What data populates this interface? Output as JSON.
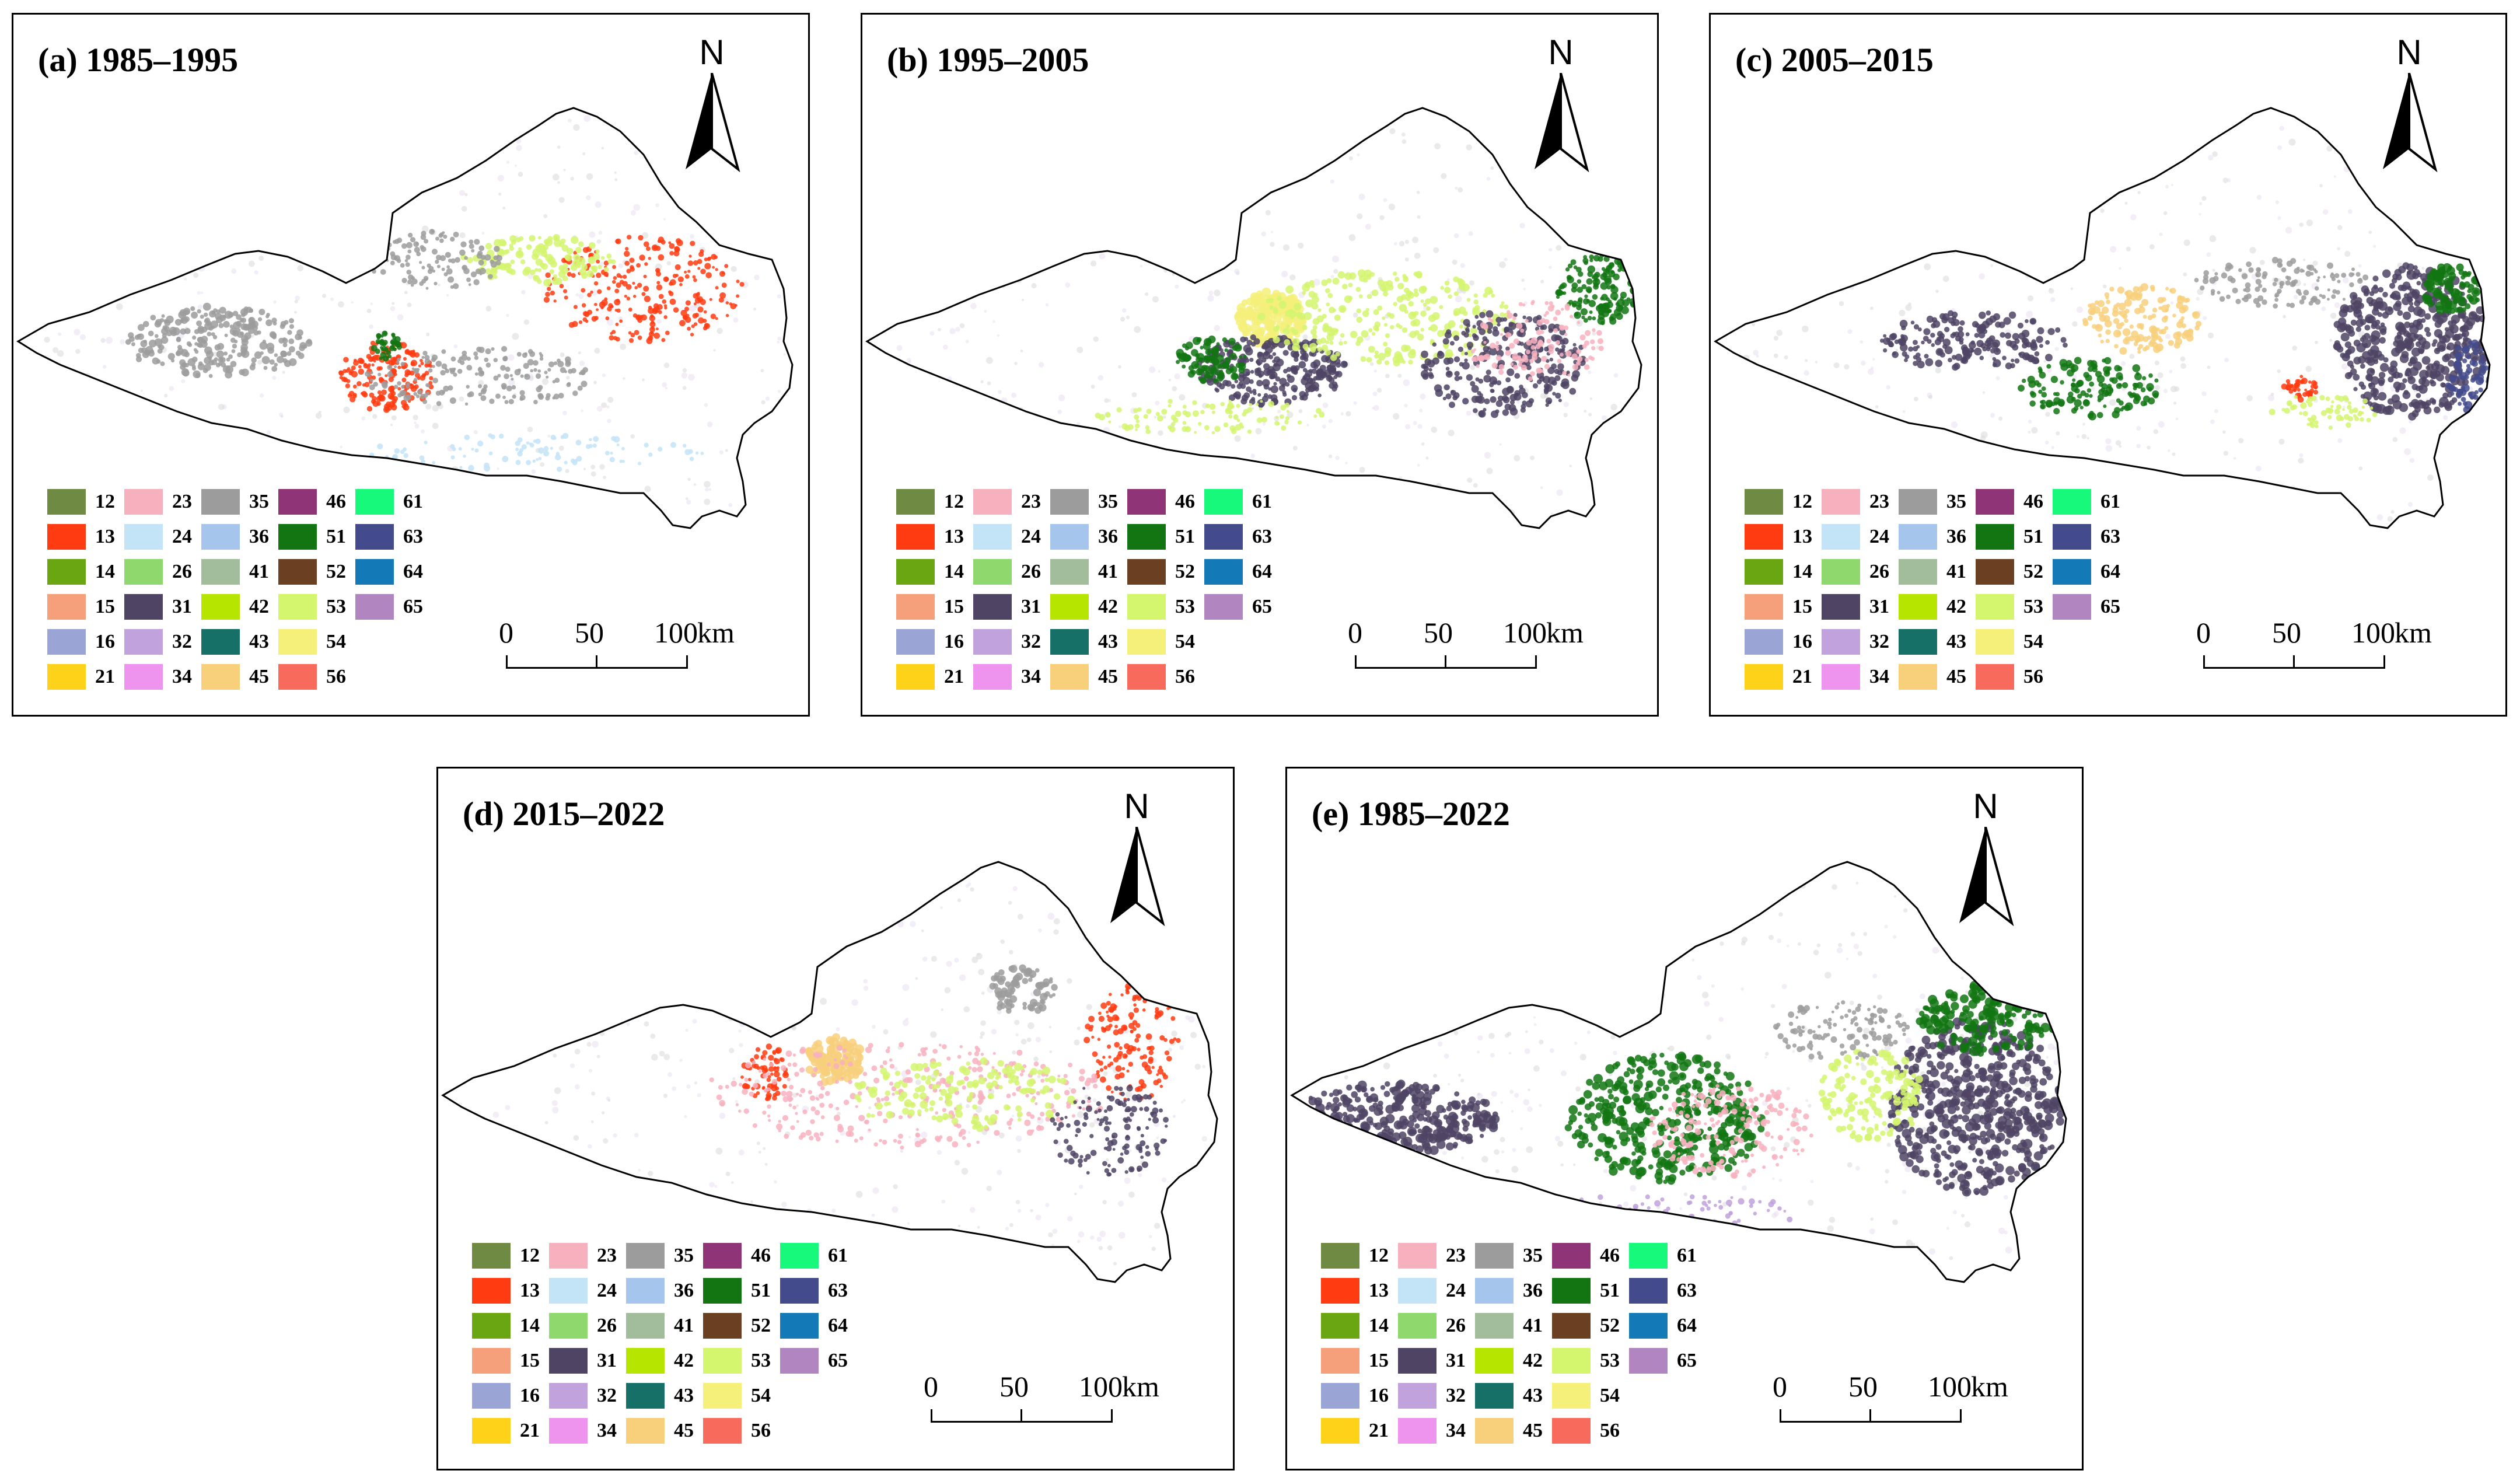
{
  "panels": [
    {
      "title": "(a) 1985–1995"
    },
    {
      "title": "(b) 1995–2005"
    },
    {
      "title": "(c) 2005–2015"
    },
    {
      "title": "(d) 2015–2022"
    },
    {
      "title": "(e) 1985–2022"
    }
  ],
  "north_label": "N",
  "scale": {
    "ticks": [
      "0",
      "50",
      "100"
    ],
    "unit": "km"
  },
  "legend": [
    {
      "code": "12",
      "color": "#6f8a43"
    },
    {
      "code": "13",
      "color": "#ff3b12"
    },
    {
      "code": "14",
      "color": "#6aa512"
    },
    {
      "code": "15",
      "color": "#f5a07a"
    },
    {
      "code": "16",
      "color": "#9aa5d6"
    },
    {
      "code": "21",
      "color": "#ffd21a"
    },
    {
      "code": "23",
      "color": "#f7b1be"
    },
    {
      "code": "24",
      "color": "#c3e4f7"
    },
    {
      "code": "26",
      "color": "#8ed86e"
    },
    {
      "code": "31",
      "color": "#4f4464"
    },
    {
      "code": "32",
      "color": "#c1a2dc"
    },
    {
      "code": "34",
      "color": "#ee93ee"
    },
    {
      "code": "35",
      "color": "#9c9c9c"
    },
    {
      "code": "36",
      "color": "#a6c5ec"
    },
    {
      "code": "41",
      "color": "#a2bd9b"
    },
    {
      "code": "42",
      "color": "#b6e600"
    },
    {
      "code": "43",
      "color": "#167068"
    },
    {
      "code": "45",
      "color": "#f8d07c"
    },
    {
      "code": "46",
      "color": "#8f3477"
    },
    {
      "code": "51",
      "color": "#127512"
    },
    {
      "code": "52",
      "color": "#6b3f22"
    },
    {
      "code": "53",
      "color": "#d4f56e"
    },
    {
      "code": "54",
      "color": "#f4f07a"
    },
    {
      "code": "56",
      "color": "#f86a5c"
    },
    {
      "code": "61",
      "color": "#16f97a"
    },
    {
      "code": "63",
      "color": "#434b8c"
    },
    {
      "code": "64",
      "color": "#1479b7"
    },
    {
      "code": "65",
      "color": "#b085c0"
    }
  ]
}
